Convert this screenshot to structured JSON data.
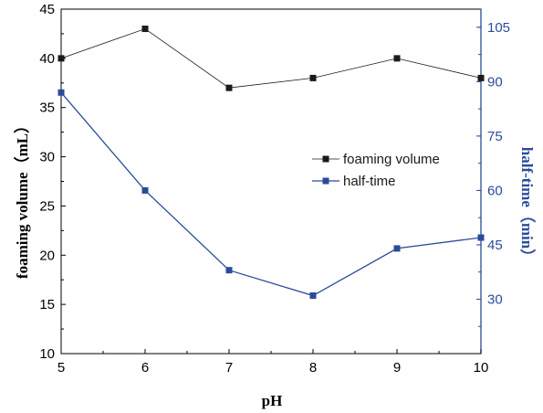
{
  "chart_data": {
    "type": "line",
    "xlabel": "pH",
    "ylabel": "foaming volume（mL）",
    "y2label": "half-time（min）",
    "x": [
      5,
      6,
      7,
      8,
      9,
      10
    ],
    "xlim": [
      5,
      10
    ],
    "ylim": [
      10,
      45
    ],
    "y2lim": [
      15,
      110
    ],
    "x_ticks": [
      "5",
      "6",
      "7",
      "8",
      "9",
      "10"
    ],
    "y_ticks": [
      "10",
      "15",
      "20",
      "25",
      "30",
      "35",
      "40",
      "45"
    ],
    "y2_ticks": [
      "30",
      "45",
      "60",
      "75",
      "90",
      "105"
    ],
    "series": [
      {
        "name": "foaming volume",
        "axis": "left",
        "color": "#1a1a1a",
        "marker": "square",
        "values": [
          40,
          43,
          37,
          38,
          40,
          38
        ]
      },
      {
        "name": "half-time",
        "axis": "right",
        "color": "#2a4b9b",
        "marker": "square",
        "values": [
          87,
          60,
          38,
          31,
          44,
          47
        ]
      }
    ],
    "legend_position": "center-right",
    "grid": false
  }
}
